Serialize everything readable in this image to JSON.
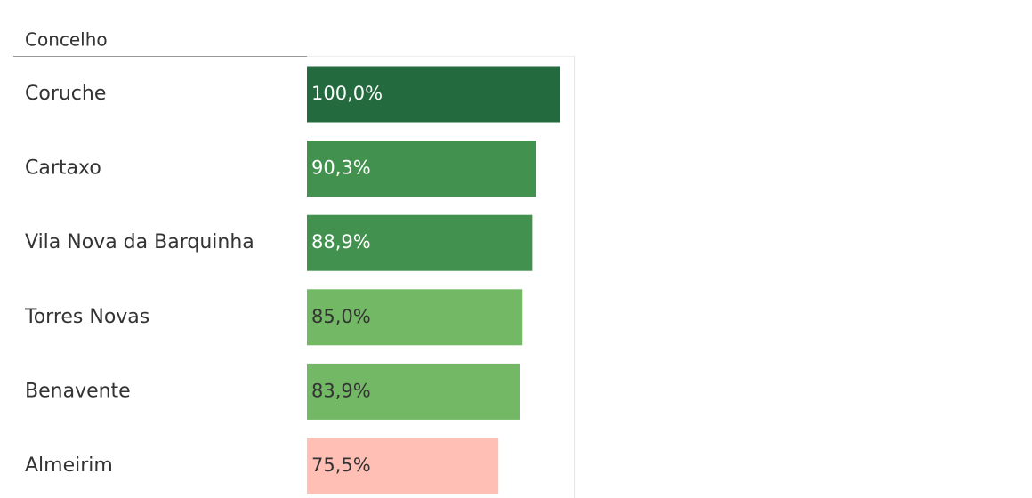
{
  "chart_data": {
    "type": "bar",
    "orientation": "horizontal",
    "header": "Concelho",
    "categories": [
      "Coruche",
      "Cartaxo",
      "Vila Nova da Barquinha",
      "Torres Novas",
      "Benavente",
      "Almeirim"
    ],
    "values": [
      100,
      90.3,
      88.9,
      85,
      83.9,
      75.5
    ],
    "value_labels": [
      "100,0%",
      "90,3%",
      "88,9%",
      "85,0%",
      "83,9%",
      "75,5%"
    ],
    "colors": [
      "#236a3e",
      "#43914f",
      "#43914f",
      "#73b865",
      "#73b865",
      "#ffbfb5"
    ],
    "xlim": [
      0,
      100
    ]
  }
}
